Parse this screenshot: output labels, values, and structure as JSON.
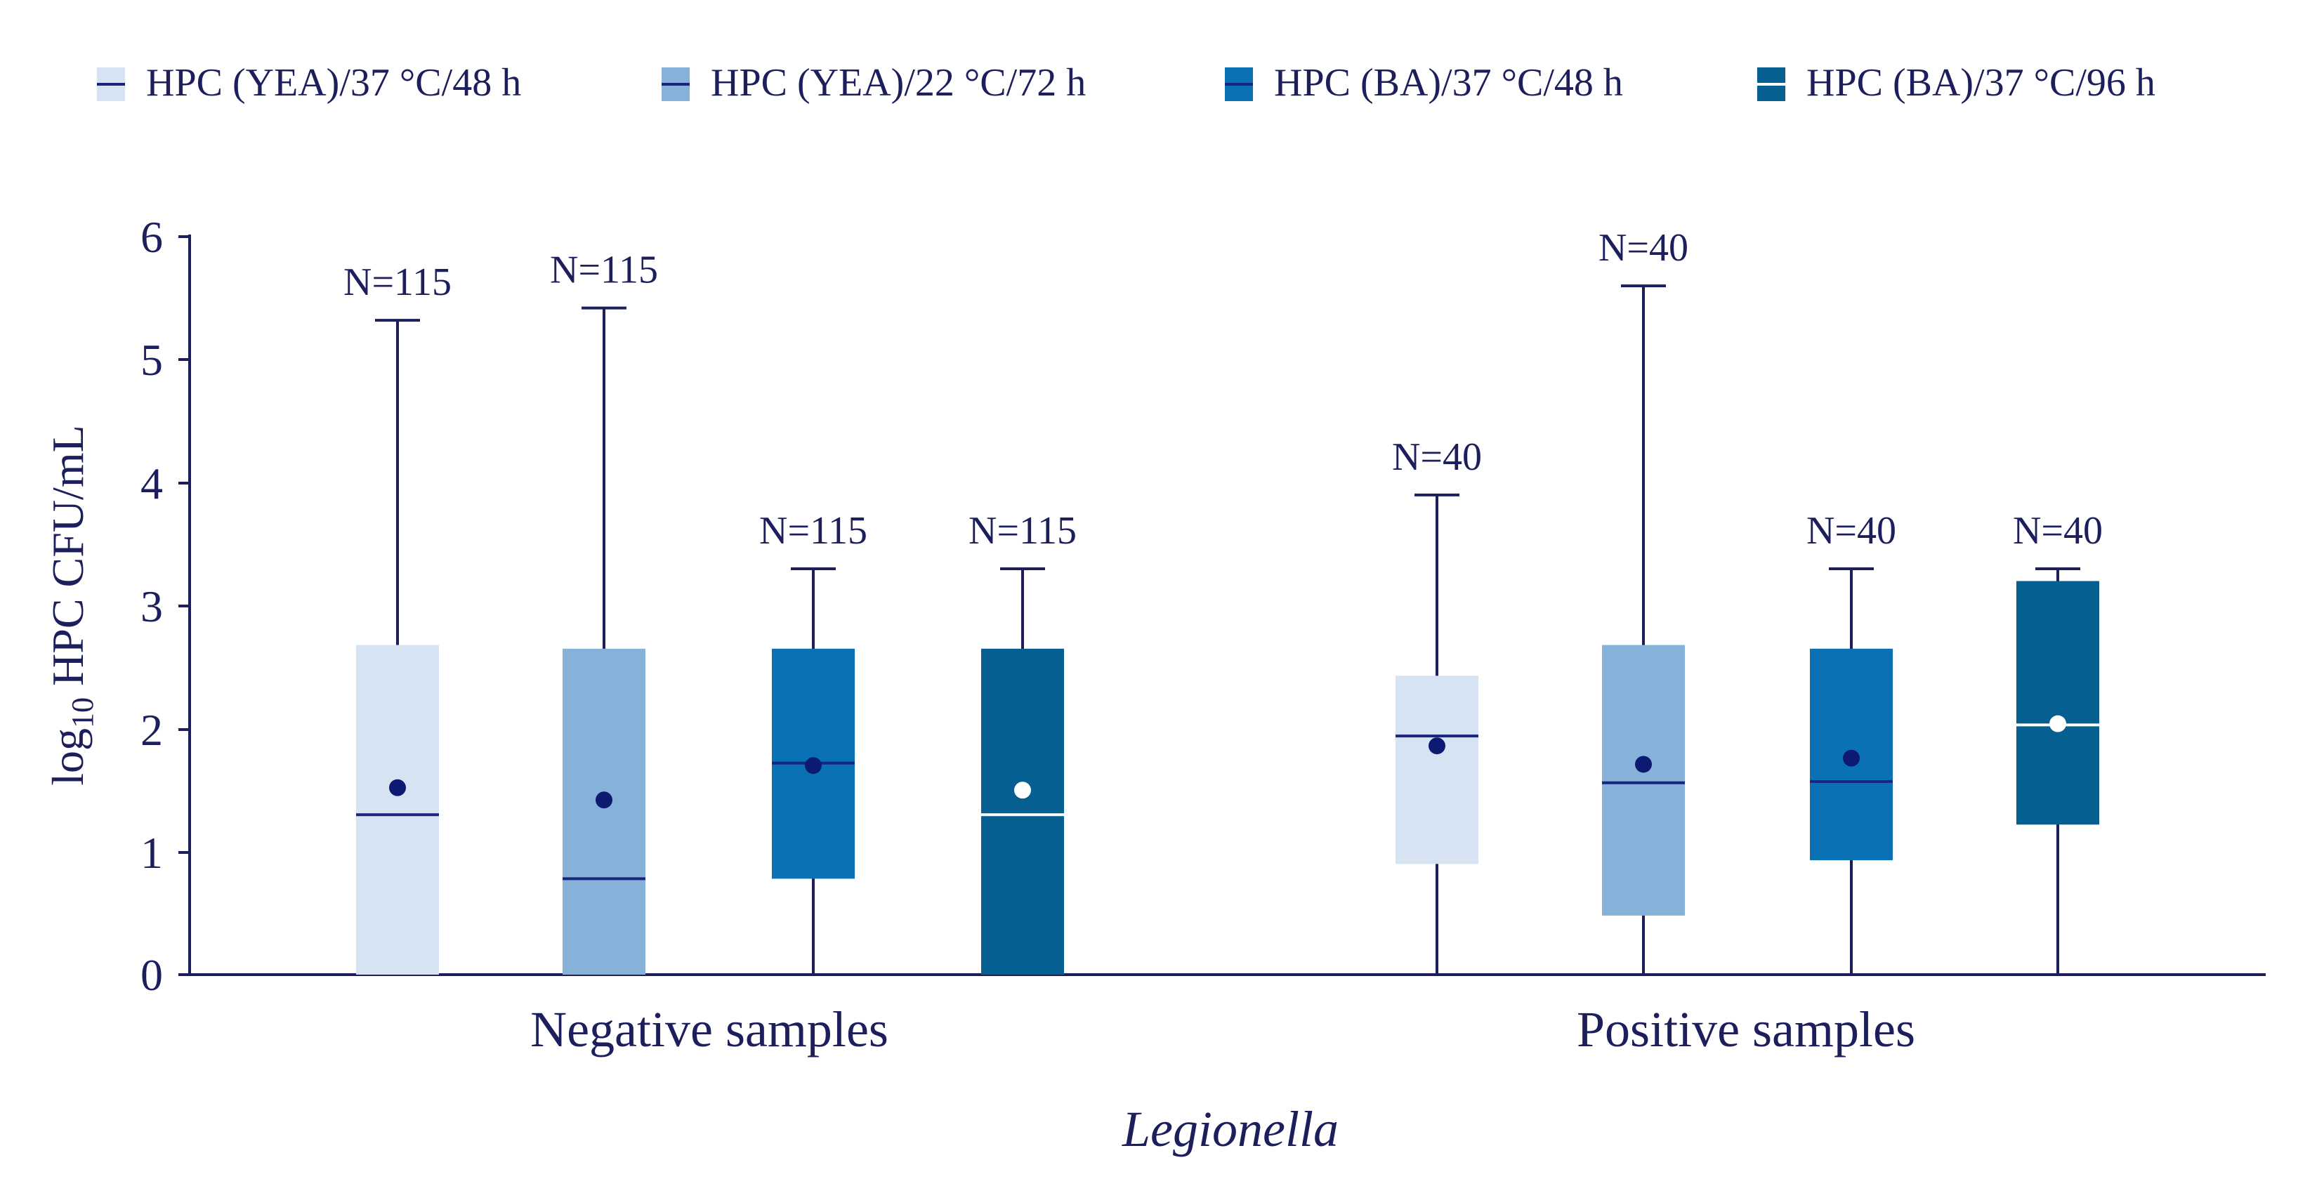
{
  "chart_data": {
    "type": "boxplot",
    "title": "",
    "ylabel": {
      "base": "log",
      "subscript": "10",
      "rest": " HPC CFU/mL"
    },
    "xlabel": "Legionella",
    "ylim": [
      0,
      6
    ],
    "yticks": [
      0,
      1,
      2,
      3,
      4,
      5,
      6
    ],
    "ytick_labels": [
      "0",
      "1",
      "2",
      "3",
      "4",
      "5",
      "6"
    ],
    "groups": [
      "Negative samples",
      "Positive samples"
    ],
    "series": [
      {
        "name": "HPC (YEA)/37 °C/48 h",
        "color": "#d5e3f2",
        "median_color": "#1a237e",
        "mean_color": "#0d1a72"
      },
      {
        "name": "HPC (YEA)/22 °C/72 h",
        "color": "#86b2da",
        "median_color": "#1a237e",
        "mean_color": "#0d1a72"
      },
      {
        "name": "HPC (BA)/37 °C/48 h",
        "color": "#0a72b4",
        "median_color": "#1a237e",
        "mean_color": "#0d1a72"
      },
      {
        "name": "HPC (BA)/37 °C/96 h",
        "color": "#065f91",
        "median_color": "#ffffff",
        "mean_color": "#ffffff"
      }
    ],
    "boxes": [
      {
        "group": 0,
        "series": 0,
        "min": 0,
        "q1": 0,
        "median": 1.3,
        "q3": 2.68,
        "max": 5.32,
        "mean": 1.52,
        "n_label": "N=115"
      },
      {
        "group": 0,
        "series": 1,
        "min": 0,
        "q1": 0,
        "median": 0.78,
        "q3": 2.65,
        "max": 5.42,
        "mean": 1.42,
        "n_label": "N=115"
      },
      {
        "group": 0,
        "series": 2,
        "min": 0,
        "q1": 0.78,
        "median": 1.72,
        "q3": 2.65,
        "max": 3.3,
        "mean": 1.7,
        "n_label": "N=115"
      },
      {
        "group": 0,
        "series": 3,
        "min": 0,
        "q1": 0,
        "median": 1.3,
        "q3": 2.65,
        "max": 3.3,
        "mean": 1.5,
        "n_label": "N=115"
      },
      {
        "group": 1,
        "series": 0,
        "min": 0,
        "q1": 0.9,
        "median": 1.94,
        "q3": 2.43,
        "max": 3.9,
        "mean": 1.86,
        "n_label": "N=40"
      },
      {
        "group": 1,
        "series": 1,
        "min": 0,
        "q1": 0.48,
        "median": 1.56,
        "q3": 2.68,
        "max": 5.6,
        "mean": 1.71,
        "n_label": "N=40"
      },
      {
        "group": 1,
        "series": 2,
        "min": 0,
        "q1": 0.93,
        "median": 1.57,
        "q3": 2.65,
        "max": 3.3,
        "mean": 1.76,
        "n_label": "N=40"
      },
      {
        "group": 1,
        "series": 3,
        "min": 0,
        "q1": 1.22,
        "median": 2.03,
        "q3": 3.2,
        "max": 3.3,
        "mean": 2.04,
        "n_label": "N=40"
      }
    ]
  }
}
